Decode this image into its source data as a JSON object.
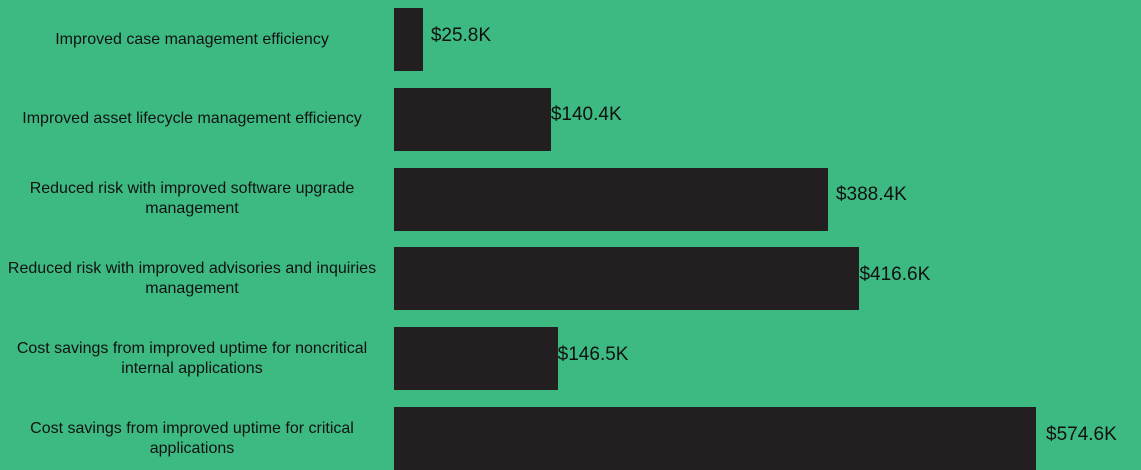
{
  "chart_data": {
    "type": "bar",
    "orientation": "horizontal",
    "categories": [
      "Improved case management efficiency",
      "Improved asset lifecycle management efficiency",
      "Reduced risk with improved software upgrade management",
      "Reduced risk with improved advisories and inquiries management",
      "Cost savings from improved uptime for noncritical internal applications",
      "Cost savings from improved uptime for critical applications"
    ],
    "values": [
      25.8,
      140.4,
      388.4,
      416.6,
      146.5,
      574.6
    ],
    "value_labels": [
      "$25.8K",
      "$140.4K",
      "$388.4K",
      "$416.6K",
      "$146.5K",
      "$574.6K"
    ],
    "color": "#231f20"
  }
}
